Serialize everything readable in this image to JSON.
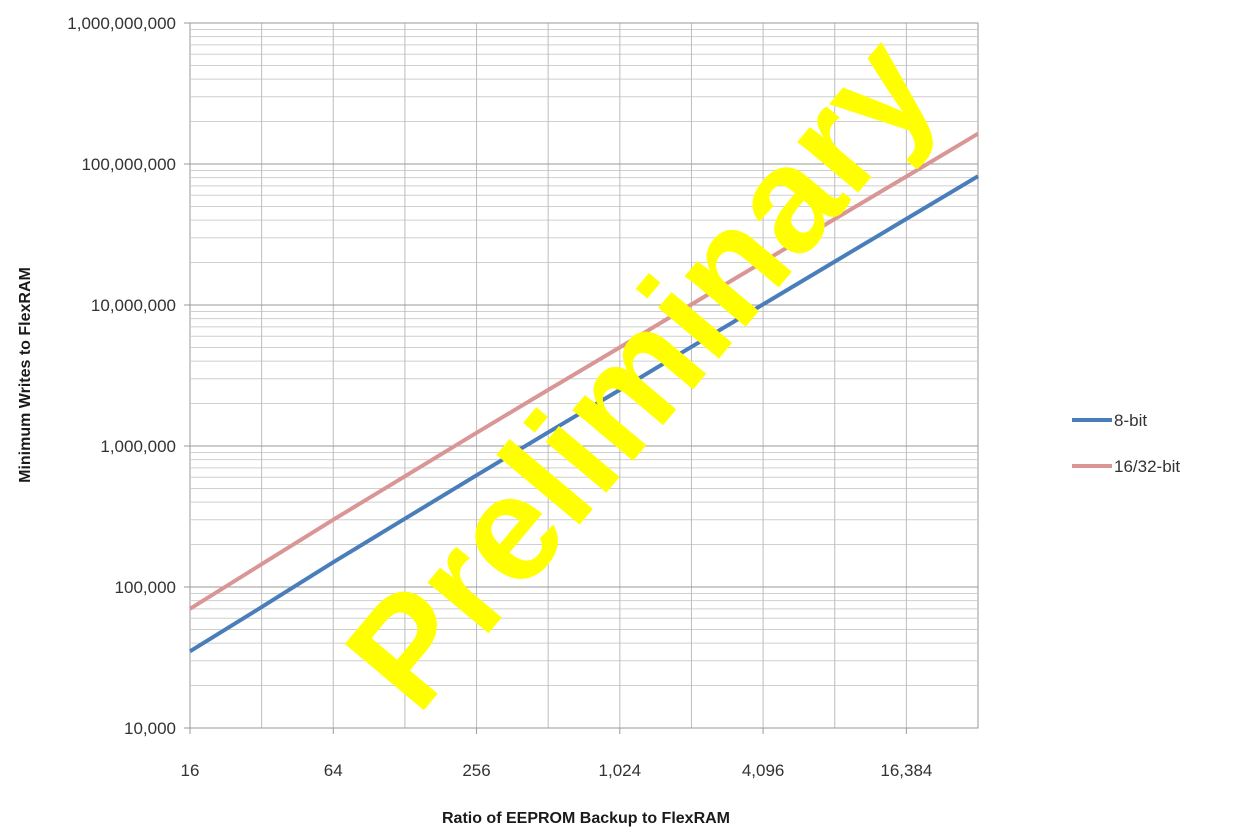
{
  "watermark": "Preliminary",
  "chart_data": {
    "type": "line",
    "title": "",
    "xlabel": "Ratio of EEPROM Backup to FlexRAM",
    "ylabel": "Minimum Writes to FlexRAM",
    "x_scale": "log2",
    "y_scale": "log10",
    "xlim": [
      16,
      32768
    ],
    "ylim": [
      10000,
      1000000000
    ],
    "x_ticks": [
      16,
      64,
      256,
      1024,
      4096,
      16384
    ],
    "x_tick_labels": [
      "16",
      "64",
      "256",
      "1,024",
      "4,096",
      "16,384"
    ],
    "y_ticks": [
      10000,
      100000,
      1000000,
      10000000,
      100000000,
      1000000000
    ],
    "y_tick_labels": [
      "10,000",
      "100,000",
      "1,000,000",
      "10,000,000",
      "100,000,000",
      "1,000,000,000"
    ],
    "grid": true,
    "legend_position": "right",
    "series": [
      {
        "name": "8-bit",
        "color": "#4a7ebb",
        "x": [
          16,
          32,
          64,
          128,
          256,
          512,
          1024,
          2048,
          4096,
          8192,
          16384,
          32768
        ],
        "y": [
          35000,
          72000,
          150000,
          305000,
          620000,
          1250000,
          2500000,
          5050000,
          10100000,
          20300000,
          40800000,
          82000000
        ]
      },
      {
        "name": "16/32-bit",
        "color": "#d99694",
        "x": [
          16,
          32,
          64,
          128,
          256,
          512,
          1024,
          2048,
          4096,
          8192,
          16384,
          32768
        ],
        "y": [
          70000,
          145000,
          300000,
          610000,
          1240000,
          2500000,
          5000000,
          10100000,
          20200000,
          40700000,
          81600000,
          164000000
        ]
      }
    ]
  }
}
